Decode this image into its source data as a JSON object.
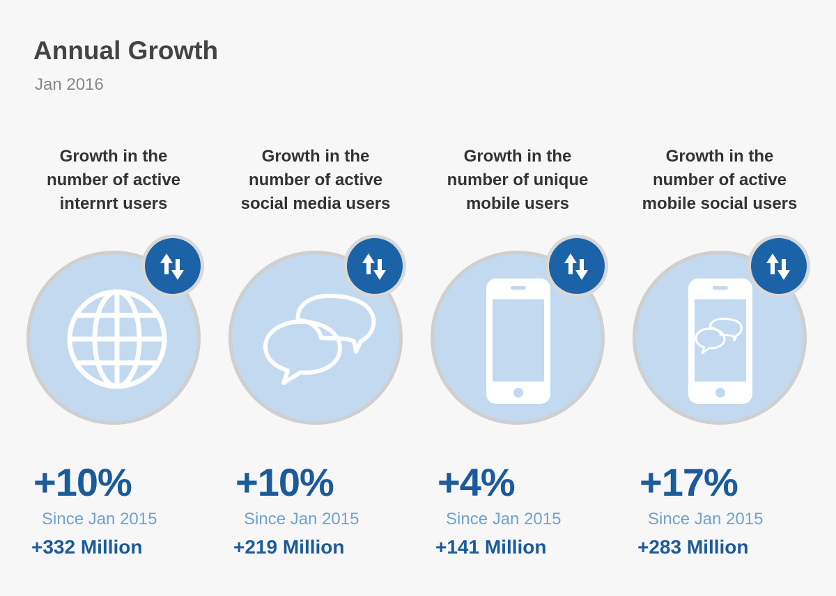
{
  "title": "Annual Growth",
  "subtitle": "Jan 2016",
  "colors": {
    "circle_fill": "#c3d9ef",
    "circle_border": "#cfcfcf",
    "badge": "#1b62a7",
    "percent_text": "#1b5a9b",
    "since_text": "#6fa3d2"
  },
  "stats": [
    {
      "heading_lines": [
        "Growth in the",
        "number of active",
        "internrt users"
      ],
      "icon": "globe-icon",
      "percent": "+10%",
      "since": "Since Jan 2015",
      "count": "+332 Million"
    },
    {
      "heading_lines": [
        "Growth in the",
        "number of active",
        "social media users"
      ],
      "icon": "chat-bubbles-icon",
      "percent": "+10%",
      "since": "Since Jan 2015",
      "count": "+219 Million"
    },
    {
      "heading_lines": [
        "Growth in the",
        "number of unique",
        "mobile users"
      ],
      "icon": "smartphone-icon",
      "percent": "+4%",
      "since": "Since Jan 2015",
      "count": "+141 Million"
    },
    {
      "heading_lines": [
        "Growth in the",
        "number of active",
        "mobile social users"
      ],
      "icon": "smartphone-chat-icon",
      "percent": "+17%",
      "since": "Since Jan 2015",
      "count": "+283 Million"
    }
  ]
}
